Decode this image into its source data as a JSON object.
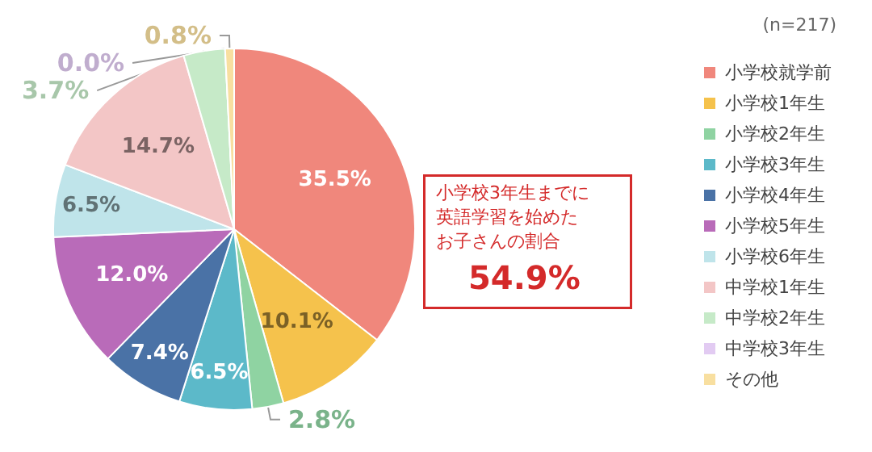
{
  "chart_data": {
    "type": "pie",
    "categories": [
      "小学校就学前",
      "小学校1年生",
      "小学校2年生",
      "小学校3年生",
      "小学校4年生",
      "小学校5年生",
      "小学校6年生",
      "中学校1年生",
      "中学校2年生",
      "中学校3年生",
      "その他"
    ],
    "values": [
      35.5,
      10.1,
      2.8,
      6.5,
      7.4,
      12.0,
      6.5,
      14.7,
      3.7,
      0.0,
      0.8
    ],
    "value_labels": [
      "35.5%",
      "10.1%",
      "2.8%",
      "6.5%",
      "7.4%",
      "12.0%",
      "6.5%",
      "14.7%",
      "3.7%",
      "0.0%",
      "0.8%"
    ],
    "colors": [
      "#f0877c",
      "#f5c24c",
      "#8fd3a2",
      "#5cb9c9",
      "#4a72a6",
      "#b96bb9",
      "#bfe4ea",
      "#f3c6c6",
      "#c6eac8",
      "#e2cbf2",
      "#f8dfa0"
    ],
    "legend": "right",
    "annotations": [
      "(n=217)",
      "小学校3年生までに",
      "英語学習を始めた",
      "お子さんの割合",
      "54.9%"
    ]
  }
}
